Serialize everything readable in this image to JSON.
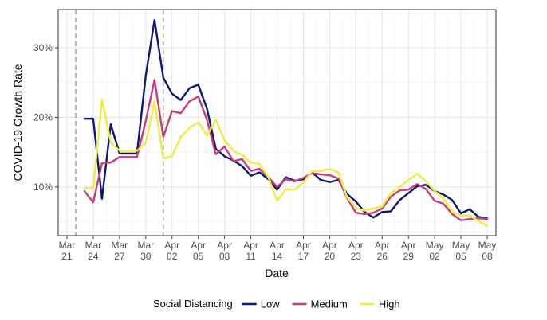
{
  "chart_data": {
    "type": "line",
    "xlabel": "Date",
    "ylabel": "COVID-19 Growth Rate",
    "x": [
      "Mar 23",
      "Mar 24",
      "Mar 25",
      "Mar 26",
      "Mar 27",
      "Mar 28",
      "Mar 29",
      "Mar 30",
      "Mar 31",
      "Apr 01",
      "Apr 02",
      "Apr 03",
      "Apr 04",
      "Apr 05",
      "Apr 06",
      "Apr 07",
      "Apr 08",
      "Apr 09",
      "Apr 10",
      "Apr 11",
      "Apr 12",
      "Apr 13",
      "Apr 14",
      "Apr 15",
      "Apr 16",
      "Apr 17",
      "Apr 18",
      "Apr 19",
      "Apr 20",
      "Apr 21",
      "Apr 22",
      "Apr 23",
      "Apr 24",
      "Apr 25",
      "Apr 26",
      "Apr 27",
      "Apr 28",
      "Apr 29",
      "Apr 30",
      "May 01",
      "May 02",
      "May 03",
      "May 04",
      "May 05",
      "May 06",
      "May 07",
      "May 08"
    ],
    "x_ticks": [
      {
        "month": "Mar",
        "day": "21",
        "date": "Mar 21"
      },
      {
        "month": "Mar",
        "day": "24",
        "date": "Mar 24"
      },
      {
        "month": "Mar",
        "day": "27",
        "date": "Mar 27"
      },
      {
        "month": "Mar",
        "day": "30",
        "date": "Mar 30"
      },
      {
        "month": "Apr",
        "day": "02",
        "date": "Apr 02"
      },
      {
        "month": "Apr",
        "day": "05",
        "date": "Apr 05"
      },
      {
        "month": "Apr",
        "day": "08",
        "date": "Apr 08"
      },
      {
        "month": "Apr",
        "day": "11",
        "date": "Apr 11"
      },
      {
        "month": "Apr",
        "day": "14",
        "date": "Apr 14"
      },
      {
        "month": "Apr",
        "day": "17",
        "date": "Apr 17"
      },
      {
        "month": "Apr",
        "day": "20",
        "date": "Apr 20"
      },
      {
        "month": "Apr",
        "day": "23",
        "date": "Apr 23"
      },
      {
        "month": "Apr",
        "day": "26",
        "date": "Apr 26"
      },
      {
        "month": "Apr",
        "day": "29",
        "date": "Apr 29"
      },
      {
        "month": "May",
        "day": "02",
        "date": "May 02"
      },
      {
        "month": "May",
        "day": "05",
        "date": "May 05"
      },
      {
        "month": "May",
        "day": "08",
        "date": "May 08"
      }
    ],
    "y_ticks": [
      {
        "value": 0.1,
        "label": "10%"
      },
      {
        "value": 0.2,
        "label": "20%"
      },
      {
        "value": 0.3,
        "label": "30%"
      }
    ],
    "xlim": [
      "Mar 20",
      "May 09"
    ],
    "ylim": [
      0.03,
      0.355
    ],
    "grid": true,
    "vlines": [
      {
        "date": "Mar 22",
        "style": "dashed"
      },
      {
        "date": "Apr 01",
        "style": "dashed"
      }
    ],
    "legend": {
      "title": "Social Distancing",
      "placement": "bottom"
    },
    "series": [
      {
        "name": "Low",
        "color": "#0c1878",
        "values": [
          0.198,
          0.198,
          0.083,
          0.19,
          0.148,
          0.148,
          0.148,
          0.26,
          0.34,
          0.257,
          0.234,
          0.225,
          0.242,
          0.247,
          0.212,
          0.155,
          0.144,
          0.138,
          0.13,
          0.116,
          0.121,
          0.111,
          0.096,
          0.114,
          0.109,
          0.111,
          0.121,
          0.11,
          0.107,
          0.11,
          0.09,
          0.079,
          0.064,
          0.056,
          0.064,
          0.065,
          0.081,
          0.091,
          0.101,
          0.103,
          0.094,
          0.089,
          0.081,
          0.062,
          0.068,
          0.057,
          0.055
        ]
      },
      {
        "name": "Medium",
        "color": "#c63e78",
        "values": [
          0.094,
          0.078,
          0.134,
          0.135,
          0.143,
          0.143,
          0.143,
          0.195,
          0.254,
          0.172,
          0.209,
          0.206,
          0.223,
          0.23,
          0.196,
          0.147,
          0.158,
          0.137,
          0.14,
          0.123,
          0.126,
          0.114,
          0.1,
          0.111,
          0.108,
          0.113,
          0.12,
          0.118,
          0.117,
          0.112,
          0.084,
          0.063,
          0.061,
          0.063,
          0.069,
          0.086,
          0.095,
          0.096,
          0.104,
          0.097,
          0.08,
          0.076,
          0.061,
          0.052,
          0.054,
          0.055,
          0.054
        ]
      },
      {
        "name": "High",
        "color": "#f0ec40",
        "values": [
          0.098,
          0.098,
          0.226,
          0.164,
          0.152,
          0.152,
          0.152,
          0.163,
          0.223,
          0.141,
          0.144,
          0.172,
          0.185,
          0.193,
          0.174,
          0.197,
          0.167,
          0.152,
          0.146,
          0.135,
          0.133,
          0.114,
          0.08,
          0.097,
          0.096,
          0.106,
          0.123,
          0.123,
          0.126,
          0.121,
          0.085,
          0.07,
          0.066,
          0.069,
          0.072,
          0.091,
          0.1,
          0.11,
          0.119,
          0.108,
          0.094,
          0.084,
          0.064,
          0.059,
          0.059,
          0.051,
          0.044
        ]
      }
    ]
  }
}
